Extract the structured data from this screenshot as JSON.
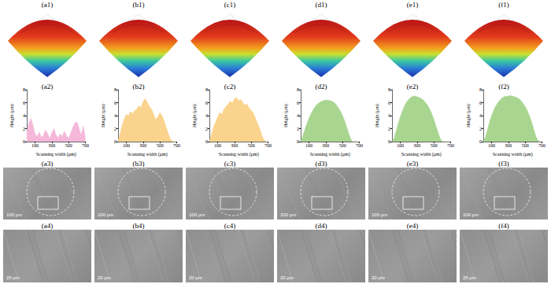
{
  "panel_labels_top": [
    "(a1)",
    "(b1)",
    "(c1)",
    "(d1)",
    "(e1)",
    "(f1)"
  ],
  "chart_data": [
    {
      "title": "(a2)",
      "type": "area",
      "color": "#f5b8d9",
      "xlabel": "Scanning width (μm)",
      "ylabel": "Height (μm)",
      "x": [
        0,
        25,
        50,
        75,
        100,
        125,
        150,
        175,
        200,
        225,
        250,
        275,
        300,
        325,
        350,
        375,
        400,
        425,
        450,
        475,
        500,
        525,
        550,
        575,
        600,
        625,
        650,
        675,
        700
      ],
      "values": [
        1.5,
        2.8,
        3.6,
        2.5,
        1.2,
        0.8,
        1.5,
        0.6,
        1.0,
        1.8,
        1.2,
        0.5,
        1.4,
        2.0,
        1.0,
        0.6,
        1.2,
        0.8,
        1.6,
        0.9,
        0.5,
        1.3,
        2.2,
        2.9,
        3.0,
        2.0,
        1.0,
        2.4,
        0.5
      ],
      "xlim": [
        0,
        700
      ],
      "xticks": [
        100,
        300,
        500,
        700
      ],
      "ylim": [
        0,
        8
      ],
      "yticks": [
        0,
        2,
        4,
        6,
        8
      ],
      "grid": false
    },
    {
      "title": "(b2)",
      "type": "area",
      "color": "#fad48d",
      "xlabel": "Scanning width (μm)",
      "ylabel": "Height (μm)",
      "x": [
        0,
        25,
        50,
        75,
        100,
        125,
        150,
        175,
        200,
        225,
        250,
        275,
        300,
        325,
        350,
        375,
        400,
        425,
        450,
        475,
        500,
        525,
        550,
        575,
        600,
        625,
        650,
        675,
        700
      ],
      "values": [
        0,
        1.2,
        2.5,
        3.5,
        4.2,
        4.0,
        4.6,
        4.3,
        4.8,
        5.0,
        5.6,
        5.2,
        6.2,
        6.6,
        6.0,
        5.4,
        5.0,
        4.2,
        3.4,
        3.8,
        4.5,
        4.0,
        3.2,
        2.2,
        1.2,
        0.4,
        0,
        0,
        0
      ],
      "xlim": [
        0,
        700
      ],
      "xticks": [
        100,
        300,
        500,
        700
      ],
      "ylim": [
        0,
        8
      ],
      "yticks": [
        0,
        2,
        4,
        6,
        8
      ],
      "grid": false
    },
    {
      "title": "(c2)",
      "type": "area",
      "color": "#fad48d",
      "xlabel": "Scanning width (μm)",
      "ylabel": "Height (μm)",
      "x": [
        0,
        25,
        50,
        75,
        100,
        125,
        150,
        175,
        200,
        225,
        250,
        275,
        300,
        325,
        350,
        375,
        400,
        425,
        450,
        475,
        500,
        525,
        550,
        575,
        600,
        625,
        650,
        675,
        700
      ],
      "values": [
        0,
        1.0,
        2.2,
        3.0,
        3.8,
        4.5,
        4.2,
        5.0,
        5.4,
        5.8,
        6.2,
        6.0,
        6.6,
        6.8,
        6.3,
        6.5,
        6.0,
        5.6,
        5.8,
        5.2,
        4.8,
        4.4,
        3.6,
        2.8,
        2.0,
        1.0,
        0.3,
        0,
        0
      ],
      "xlim": [
        0,
        700
      ],
      "xticks": [
        100,
        300,
        500,
        700
      ],
      "ylim": [
        0,
        8
      ],
      "yticks": [
        0,
        2,
        4,
        6,
        8
      ],
      "grid": false
    },
    {
      "title": "(d2)",
      "type": "area",
      "color": "#a8d590",
      "xlabel": "Scanning width (μm)",
      "ylabel": "Height (μm)",
      "x": [
        0,
        25,
        50,
        75,
        100,
        125,
        150,
        175,
        200,
        225,
        250,
        275,
        300,
        325,
        350,
        375,
        400,
        425,
        450,
        475,
        500,
        525,
        550,
        575,
        600,
        625,
        650,
        675,
        700
      ],
      "values": [
        0,
        0.8,
        1.8,
        2.8,
        3.6,
        4.3,
        4.9,
        5.4,
        5.8,
        6.0,
        6.2,
        6.3,
        6.4,
        6.4,
        6.3,
        6.2,
        6.0,
        5.7,
        5.2,
        4.7,
        4.0,
        3.2,
        2.2,
        1.2,
        0.3,
        0,
        0,
        0,
        0
      ],
      "xlim": [
        0,
        700
      ],
      "xticks": [
        100,
        300,
        500,
        700
      ],
      "ylim": [
        0,
        8
      ],
      "yticks": [
        0,
        2,
        4,
        6,
        8
      ],
      "grid": false
    },
    {
      "title": "(e2)",
      "type": "area",
      "color": "#a8d590",
      "xlabel": "Scanning width (μm)",
      "ylabel": "Height (μm)",
      "x": [
        0,
        25,
        50,
        75,
        100,
        125,
        150,
        175,
        200,
        225,
        250,
        275,
        300,
        325,
        350,
        375,
        400,
        425,
        450,
        475,
        500,
        525,
        550,
        575,
        600,
        625,
        650,
        675,
        700
      ],
      "values": [
        0,
        0.5,
        1.6,
        2.8,
        3.8,
        4.7,
        5.5,
        6.1,
        6.5,
        6.8,
        7.0,
        7.0,
        6.9,
        6.8,
        6.6,
        6.4,
        6.0,
        5.6,
        5.0,
        4.3,
        3.4,
        2.4,
        1.4,
        0.5,
        0,
        0,
        0,
        0,
        0
      ],
      "xlim": [
        0,
        700
      ],
      "xticks": [
        100,
        300,
        500,
        700
      ],
      "ylim": [
        0,
        8
      ],
      "yticks": [
        0,
        2,
        4,
        6,
        8
      ],
      "grid": false
    },
    {
      "title": "(f2)",
      "type": "area",
      "color": "#a8d590",
      "xlabel": "Scanning width (μm)",
      "ylabel": "Height (μm)",
      "x": [
        0,
        25,
        50,
        75,
        100,
        125,
        150,
        175,
        200,
        225,
        250,
        275,
        300,
        325,
        350,
        375,
        400,
        425,
        450,
        475,
        500,
        525,
        550,
        575,
        600,
        625,
        650,
        675,
        700
      ],
      "values": [
        0,
        0.6,
        1.8,
        3.0,
        4.0,
        4.8,
        5.5,
        6.0,
        6.4,
        6.7,
        6.9,
        7.0,
        7.0,
        7.1,
        7.0,
        6.9,
        6.8,
        6.6,
        6.3,
        5.9,
        5.4,
        4.8,
        4.0,
        3.1,
        2.0,
        0.9,
        0.2,
        0,
        0
      ],
      "xlim": [
        0,
        700
      ],
      "xticks": [
        100,
        300,
        500,
        700
      ],
      "ylim": [
        0,
        8
      ],
      "yticks": [
        0,
        2,
        4,
        6,
        8
      ],
      "grid": false
    }
  ],
  "sem_overview": [
    {
      "title": "(a3)",
      "scale_bar": "100 μm"
    },
    {
      "title": "(b3)",
      "scale_bar": "100 μm"
    },
    {
      "title": "(c3)",
      "scale_bar": "100 μm"
    },
    {
      "title": "(d3)",
      "scale_bar": "100 μm"
    },
    {
      "title": "(e3)",
      "scale_bar": "100 μm"
    },
    {
      "title": "(f3)",
      "scale_bar": "100 μm"
    }
  ],
  "sem_detail": [
    {
      "title": "(a4)",
      "scale_bar": "20 μm"
    },
    {
      "title": "(b4)",
      "scale_bar": "20 μm"
    },
    {
      "title": "(c4)",
      "scale_bar": "20 μm"
    },
    {
      "title": "(d4)",
      "scale_bar": "20 μm"
    },
    {
      "title": "(e4)",
      "scale_bar": "20 μm"
    },
    {
      "title": "(f4)",
      "scale_bar": "20 μm"
    }
  ]
}
